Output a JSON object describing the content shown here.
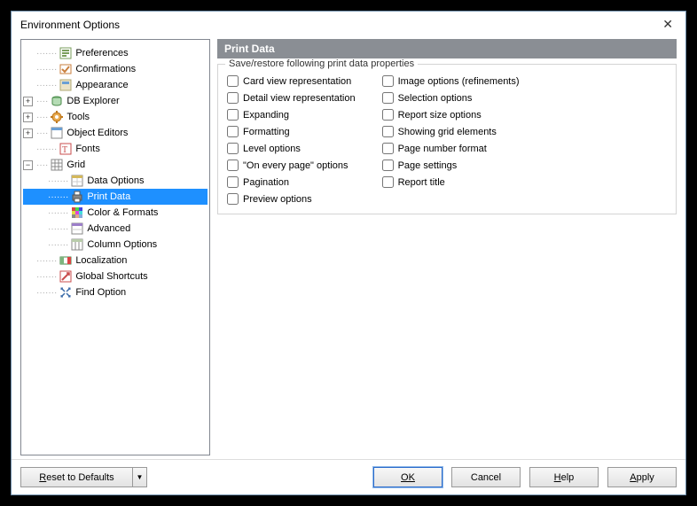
{
  "dialog": {
    "title": "Environment Options"
  },
  "tree": {
    "preferences": "Preferences",
    "confirmations": "Confirmations",
    "appearance": "Appearance",
    "dbexplorer": "DB Explorer",
    "tools": "Tools",
    "objecteditors": "Object Editors",
    "fonts": "Fonts",
    "grid": "Grid",
    "grid_children": {
      "dataoptions": "Data Options",
      "printdata": "Print Data",
      "colorformats": "Color & Formats",
      "advanced": "Advanced",
      "columnoptions": "Column Options"
    },
    "localization": "Localization",
    "globalshortcuts": "Global Shortcuts",
    "findoption": "Find Option"
  },
  "panel": {
    "title": "Print Data",
    "fieldset_label": "Save/restore following print data properties"
  },
  "checkboxes": {
    "col1": [
      "Card view representation",
      "Detail view representation",
      "Expanding",
      "Formatting",
      "Level options",
      "\"On every page\" options",
      "Pagination",
      "Preview options"
    ],
    "col2": [
      "Image options (refinements)",
      "Selection options",
      "Report size options",
      "Showing grid elements",
      "Page number format",
      "Page settings",
      "Report title"
    ]
  },
  "buttons": {
    "reset": "Reset to Defaults",
    "ok": "OK",
    "cancel": "Cancel",
    "help": "Help",
    "apply": "Apply"
  }
}
